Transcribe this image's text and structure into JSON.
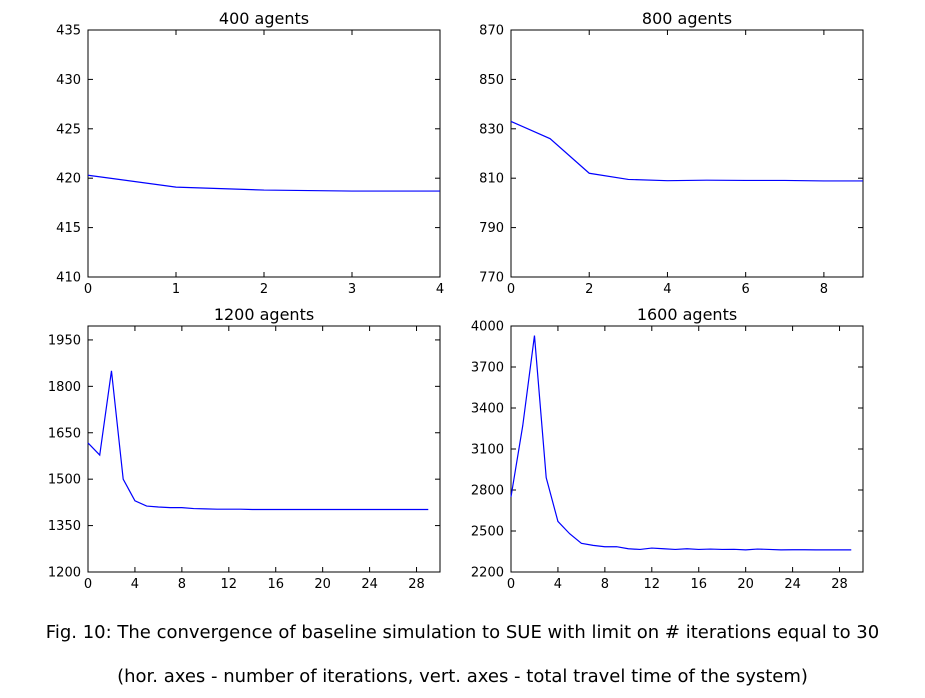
{
  "caption": {
    "line1": "Fig. 10: The convergence of baseline simulation to SUE with limit on # iterations equal to 30",
    "line2": "(hor. axes - number of iterations, vert. axes - total travel time of the system)"
  },
  "colors": {
    "line": "#0000ff",
    "axes": "#000000",
    "background": "#ffffff"
  },
  "chart_data": [
    {
      "type": "line",
      "title": "400 agents",
      "xlabel": "",
      "ylabel": "",
      "xlim": [
        0,
        4
      ],
      "ylim": [
        410,
        435
      ],
      "xticks": [
        0,
        1,
        2,
        3,
        4
      ],
      "yticks": [
        410,
        415,
        420,
        425,
        430,
        435
      ],
      "grid": false,
      "series": [
        {
          "x": [
            0,
            1,
            2,
            3,
            4
          ],
          "y": [
            420.3,
            419.1,
            418.8,
            418.7,
            418.7
          ]
        }
      ]
    },
    {
      "type": "line",
      "title": "800 agents",
      "xlabel": "",
      "ylabel": "",
      "xlim": [
        0,
        9
      ],
      "ylim": [
        770,
        870
      ],
      "xticks": [
        0,
        2,
        4,
        6,
        8
      ],
      "yticks": [
        770,
        790,
        810,
        830,
        850,
        870
      ],
      "grid": false,
      "series": [
        {
          "x": [
            0,
            1,
            2,
            3,
            4,
            5,
            6,
            7,
            8,
            9
          ],
          "y": [
            833,
            826,
            812,
            809.5,
            809,
            809.2,
            809.1,
            809.1,
            808.9,
            808.9
          ]
        }
      ]
    },
    {
      "type": "line",
      "title": "1200 agents",
      "xlabel": "",
      "ylabel": "",
      "xlim": [
        0,
        30
      ],
      "ylim": [
        1200,
        1995
      ],
      "xticks": [
        0,
        4,
        8,
        12,
        16,
        20,
        24,
        28
      ],
      "yticks": [
        1200,
        1350,
        1500,
        1650,
        1800,
        1950
      ],
      "grid": false,
      "series": [
        {
          "x": [
            0,
            1,
            2,
            3,
            4,
            5,
            6,
            7,
            8,
            9,
            10,
            11,
            12,
            13,
            14,
            15,
            16,
            17,
            18,
            19,
            20,
            21,
            22,
            23,
            24,
            25,
            26,
            27,
            28,
            29
          ],
          "y": [
            1617,
            1578,
            1850,
            1500,
            1430,
            1413,
            1410,
            1408,
            1408,
            1405,
            1404,
            1403,
            1403,
            1403,
            1402,
            1402,
            1402,
            1402,
            1402,
            1402,
            1402,
            1402,
            1402,
            1402,
            1402,
            1402,
            1402,
            1402,
            1402,
            1402
          ]
        }
      ]
    },
    {
      "type": "line",
      "title": "1600 agents",
      "xlabel": "",
      "ylabel": "",
      "xlim": [
        0,
        30
      ],
      "ylim": [
        2200,
        4000
      ],
      "xticks": [
        0,
        4,
        8,
        12,
        16,
        20,
        24,
        28
      ],
      "yticks": [
        2200,
        2500,
        2800,
        3100,
        3400,
        3700,
        4000
      ],
      "grid": false,
      "series": [
        {
          "x": [
            0,
            1,
            2,
            3,
            4,
            5,
            6,
            7,
            8,
            9,
            10,
            11,
            12,
            13,
            14,
            15,
            16,
            17,
            18,
            19,
            20,
            21,
            22,
            23,
            24,
            25,
            26,
            27,
            28,
            29
          ],
          "y": [
            2750,
            3270,
            3930,
            2890,
            2570,
            2480,
            2410,
            2395,
            2385,
            2385,
            2370,
            2365,
            2375,
            2370,
            2365,
            2370,
            2365,
            2368,
            2365,
            2366,
            2362,
            2368,
            2365,
            2362,
            2363,
            2363,
            2362,
            2362,
            2362,
            2362
          ]
        }
      ]
    }
  ]
}
